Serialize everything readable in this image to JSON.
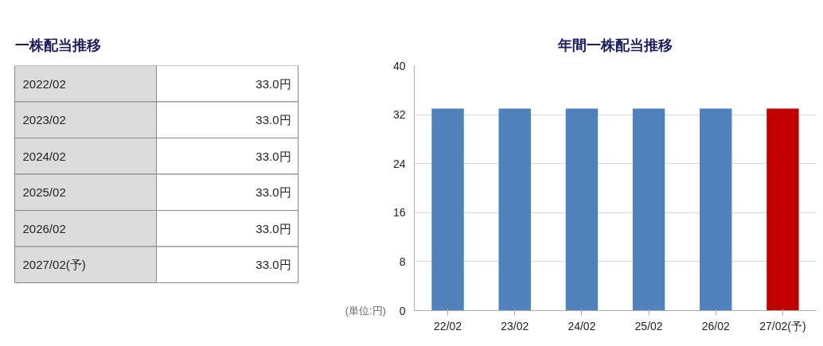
{
  "chart_data": [
    {
      "type": "other",
      "title": "一株配当推移",
      "annotations": [
        "2022/02",
        "33.0円",
        "2023/02",
        "33.0円",
        "2024/02",
        "33.0円",
        "2025/02",
        "33.0円",
        "2026/02",
        "33.0円",
        "2027/02(予)",
        "33.0円"
      ]
    },
    {
      "type": "bar",
      "title": "年間一株配当推移",
      "categories": [
        "22/02",
        "23/02",
        "24/02",
        "25/02",
        "26/02",
        "27/02(予)"
      ],
      "values": [
        33,
        33,
        33,
        33,
        33,
        33
      ],
      "colors": [
        "#4f81bd",
        "#4f81bd",
        "#4f81bd",
        "#4f81bd",
        "#4f81bd",
        "#c00000"
      ],
      "ylim": [
        0,
        40
      ],
      "yticks": [
        0,
        8,
        16,
        24,
        32,
        40
      ],
      "grid": "y",
      "annotations": [
        "(単位:円)"
      ]
    }
  ]
}
